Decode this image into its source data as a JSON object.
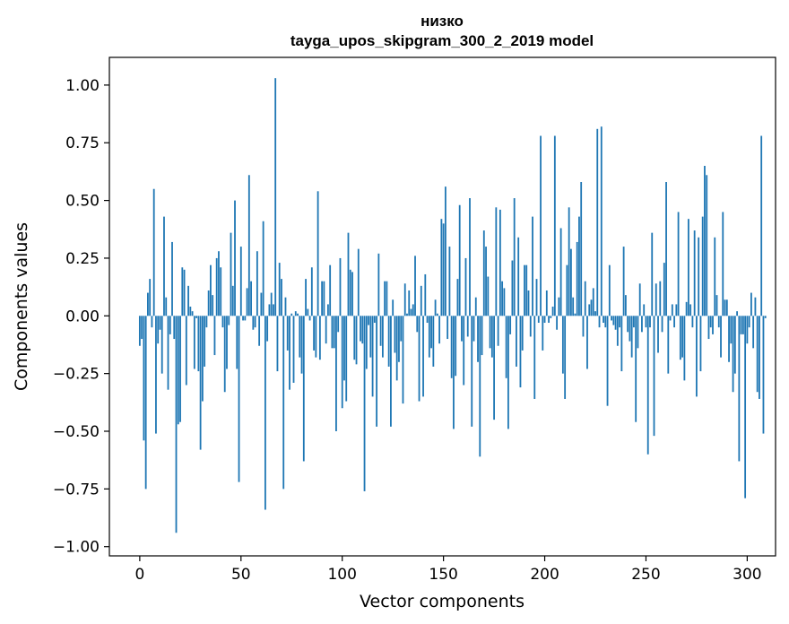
{
  "chart_data": {
    "type": "bar",
    "title_line1": "низко",
    "title_line2": "tayga_upos_skipgram_300_2_2019 model",
    "xlabel": "Vector components",
    "ylabel": "Components values",
    "xlim": [
      -15,
      314
    ],
    "ylim": [
      -1.04,
      1.12
    ],
    "xticks": [
      0,
      50,
      100,
      150,
      200,
      250,
      300
    ],
    "xtick_labels": [
      "0",
      "50",
      "100",
      "150",
      "200",
      "250",
      "300"
    ],
    "yticks": [
      1.0,
      0.75,
      0.5,
      0.25,
      0.0,
      -0.25,
      -0.5,
      -0.75,
      -1.0
    ],
    "ytick_labels": [
      "1.00",
      "0.75",
      "0.50",
      "0.25",
      "0.00",
      "−0.25",
      "−0.50",
      "−0.75",
      "−1.00"
    ],
    "grid": false,
    "bar_color": "#1f77b4",
    "values": [
      -0.13,
      -0.1,
      -0.54,
      -0.75,
      0.1,
      0.16,
      -0.05,
      0.55,
      -0.51,
      -0.12,
      -0.06,
      -0.25,
      0.43,
      0.08,
      -0.32,
      -0.08,
      0.32,
      -0.1,
      -0.94,
      -0.47,
      -0.46,
      0.21,
      0.2,
      -0.3,
      0.13,
      0.04,
      0.02,
      -0.23,
      -0.01,
      -0.24,
      -0.58,
      -0.37,
      -0.22,
      -0.05,
      0.11,
      0.22,
      0.09,
      -0.17,
      0.25,
      0.28,
      0.21,
      -0.05,
      -0.33,
      -0.23,
      -0.04,
      0.36,
      0.13,
      0.5,
      -0.23,
      -0.72,
      0.3,
      -0.02,
      -0.02,
      0.12,
      0.61,
      0.15,
      -0.06,
      -0.05,
      0.28,
      -0.13,
      0.1,
      0.41,
      -0.84,
      -0.11,
      0.05,
      0.1,
      0.05,
      1.03,
      -0.24,
      0.23,
      0.16,
      -0.75,
      0.08,
      -0.15,
      -0.32,
      0.01,
      -0.29,
      0.02,
      0.01,
      -0.18,
      -0.25,
      -0.63,
      0.16,
      0.03,
      -0.02,
      0.21,
      -0.15,
      -0.18,
      0.54,
      -0.19,
      0.15,
      0.15,
      -0.12,
      0.05,
      0.22,
      -0.14,
      -0.14,
      -0.5,
      -0.07,
      0.25,
      -0.4,
      -0.28,
      -0.37,
      0.36,
      0.2,
      0.19,
      -0.19,
      -0.21,
      0.29,
      -0.11,
      -0.12,
      -0.76,
      -0.23,
      -0.04,
      -0.18,
      -0.35,
      -0.03,
      -0.48,
      0.27,
      -0.13,
      -0.18,
      0.15,
      0.15,
      -0.22,
      -0.48,
      0.07,
      -0.16,
      -0.28,
      -0.2,
      -0.11,
      -0.38,
      0.14,
      0.01,
      0.11,
      0.03,
      0.05,
      0.26,
      -0.07,
      -0.37,
      0.13,
      -0.35,
      0.18,
      -0.03,
      -0.18,
      -0.14,
      -0.22,
      0.07,
      0.01,
      -0.12,
      0.42,
      0.4,
      0.56,
      -0.1,
      0.3,
      -0.27,
      -0.49,
      -0.26,
      0.16,
      0.48,
      -0.11,
      -0.3,
      0.25,
      -0.09,
      0.51,
      -0.48,
      -0.11,
      0.08,
      -0.2,
      -0.61,
      -0.17,
      0.37,
      0.3,
      0.17,
      -0.14,
      -0.18,
      -0.45,
      0.47,
      -0.13,
      0.46,
      0.15,
      0.12,
      -0.27,
      -0.49,
      -0.08,
      0.24,
      0.51,
      -0.22,
      0.34,
      -0.31,
      -0.15,
      0.22,
      0.22,
      0.11,
      -0.09,
      0.43,
      -0.36,
      0.16,
      -0.03,
      0.78,
      -0.15,
      -0.03,
      0.11,
      -0.03,
      -0.01,
      0.04,
      0.78,
      -0.06,
      0.08,
      0.38,
      -0.25,
      -0.36,
      0.22,
      0.47,
      0.29,
      0.08,
      0.01,
      0.32,
      0.43,
      0.58,
      -0.09,
      0.15,
      -0.23,
      0.05,
      0.07,
      0.12,
      0.02,
      0.81,
      -0.05,
      0.82,
      -0.03,
      -0.05,
      -0.39,
      0.22,
      -0.02,
      -0.04,
      -0.06,
      -0.13,
      -0.05,
      -0.24,
      0.3,
      0.09,
      -0.07,
      -0.11,
      -0.18,
      -0.05,
      -0.46,
      -0.14,
      0.14,
      -0.07,
      0.05,
      -0.05,
      -0.6,
      -0.05,
      0.36,
      -0.52,
      0.14,
      -0.16,
      0.15,
      -0.07,
      0.23,
      0.58,
      -0.25,
      -0.02,
      0.05,
      -0.05,
      0.05,
      0.45,
      -0.19,
      -0.18,
      -0.28,
      0.06,
      0.42,
      0.05,
      -0.05,
      0.37,
      -0.35,
      0.34,
      -0.24,
      0.43,
      0.65,
      0.61,
      -0.1,
      -0.05,
      -0.08,
      0.34,
      0.09,
      -0.05,
      -0.18,
      0.45,
      0.07,
      0.07,
      -0.2,
      -0.12,
      -0.33,
      -0.25,
      0.02,
      -0.63,
      -0.08,
      -0.08,
      -0.79,
      -0.12,
      -0.05,
      0.1,
      -0.14,
      0.08,
      -0.33,
      -0.36,
      0.78,
      -0.51,
      -0.01
    ]
  }
}
